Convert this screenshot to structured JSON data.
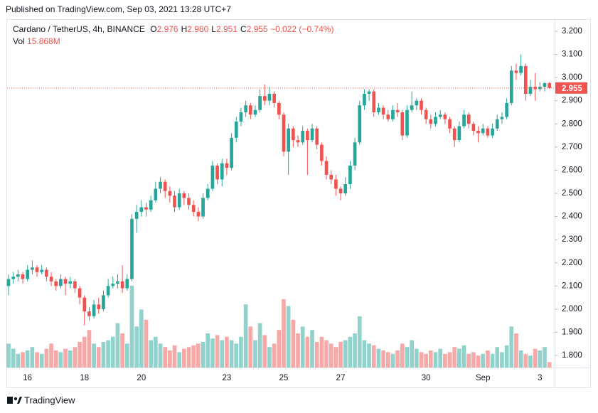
{
  "header": "Published on TradingView.com, Sep 03, 2021 13:28 UTC+7",
  "footer": "TradingView",
  "chart_data": {
    "type": "candlestick",
    "legend": {
      "symbol": "Cardano / TetherUS, 4h, BINANCE",
      "items": [
        {
          "key": "O",
          "value": "2.976"
        },
        {
          "key": "H",
          "value": "2.980"
        },
        {
          "key": "L",
          "value": "2.951"
        },
        {
          "key": "C",
          "value": "2.955"
        }
      ],
      "change": "−0.022 (−0.74%)",
      "vol_key": "Vol",
      "vol_value": "15.868M"
    },
    "up_color": "#26a69a",
    "down_color": "#ef5350",
    "xlim": [
      -0.3,
      115.1
    ],
    "xticks": [
      {
        "value": 4,
        "label": "16"
      },
      {
        "value": 16,
        "label": "18"
      },
      {
        "value": 28,
        "label": "20"
      },
      {
        "value": 46,
        "label": "23"
      },
      {
        "value": 58,
        "label": "25"
      },
      {
        "value": 70,
        "label": "27"
      },
      {
        "value": 88,
        "label": "30"
      },
      {
        "value": 100,
        "label": "Sep"
      },
      {
        "value": 112,
        "label": "3"
      }
    ],
    "ylim": [
      1.748,
      3.249
    ],
    "yticks": [
      {
        "value": 1.8,
        "label": "1.800"
      },
      {
        "value": 1.9,
        "label": "1.900"
      },
      {
        "value": 2.0,
        "label": "2.000"
      },
      {
        "value": 2.1,
        "label": "2.100"
      },
      {
        "value": 2.2,
        "label": "2.200"
      },
      {
        "value": 2.3,
        "label": "2.300"
      },
      {
        "value": 2.4,
        "label": "2.400"
      },
      {
        "value": 2.5,
        "label": "2.500"
      },
      {
        "value": 2.6,
        "label": "2.600"
      },
      {
        "value": 2.7,
        "label": "2.700"
      },
      {
        "value": 2.8,
        "label": "2.800"
      },
      {
        "value": 2.9,
        "label": "2.900"
      },
      {
        "value": 3.0,
        "label": "3.000"
      },
      {
        "value": 3.1,
        "label": "3.100"
      },
      {
        "value": 3.2,
        "label": "3.200"
      }
    ],
    "grid": true,
    "vol_lim": [
      0,
      250
    ],
    "candles": [
      [
        2.1,
        2.15,
        2.06,
        2.13
      ],
      [
        2.13,
        2.16,
        2.11,
        2.14
      ],
      [
        2.14,
        2.17,
        2.12,
        2.15
      ],
      [
        2.15,
        2.16,
        2.11,
        2.13
      ],
      [
        2.13,
        2.19,
        2.12,
        2.17
      ],
      [
        2.17,
        2.21,
        2.15,
        2.18
      ],
      [
        2.18,
        2.19,
        2.14,
        2.16
      ],
      [
        2.16,
        2.19,
        2.15,
        2.17
      ],
      [
        2.17,
        2.18,
        2.12,
        2.14
      ],
      [
        2.14,
        2.16,
        2.1,
        2.12
      ],
      [
        2.12,
        2.13,
        2.08,
        2.1
      ],
      [
        2.1,
        2.15,
        2.09,
        2.13
      ],
      [
        2.13,
        2.14,
        2.06,
        2.11
      ],
      [
        2.11,
        2.14,
        2.09,
        2.12
      ],
      [
        2.12,
        2.13,
        2.07,
        2.09
      ],
      [
        2.09,
        2.1,
        2.02,
        2.05
      ],
      [
        2.05,
        2.06,
        1.93,
        1.99
      ],
      [
        1.99,
        2.01,
        1.95,
        1.97
      ],
      [
        1.97,
        2.04,
        1.96,
        2.02
      ],
      [
        2.02,
        2.05,
        1.98,
        2.0
      ],
      [
        2.0,
        2.08,
        1.99,
        2.06
      ],
      [
        2.06,
        2.13,
        2.05,
        2.1
      ],
      [
        2.1,
        2.14,
        2.09,
        2.11
      ],
      [
        2.11,
        2.15,
        2.09,
        2.12
      ],
      [
        2.12,
        2.19,
        2.07,
        2.09
      ],
      [
        2.09,
        2.15,
        2.08,
        2.13
      ],
      [
        2.13,
        2.41,
        2.12,
        2.39
      ],
      [
        2.39,
        2.45,
        2.33,
        2.42
      ],
      [
        2.42,
        2.47,
        2.4,
        2.44
      ],
      [
        2.44,
        2.46,
        2.4,
        2.43
      ],
      [
        2.43,
        2.49,
        2.42,
        2.47
      ],
      [
        2.47,
        2.55,
        2.46,
        2.52
      ],
      [
        2.52,
        2.57,
        2.5,
        2.55
      ],
      [
        2.55,
        2.56,
        2.48,
        2.51
      ],
      [
        2.51,
        2.53,
        2.46,
        2.49
      ],
      [
        2.49,
        2.51,
        2.42,
        2.44
      ],
      [
        2.44,
        2.52,
        2.43,
        2.5
      ],
      [
        2.5,
        2.51,
        2.45,
        2.48
      ],
      [
        2.48,
        2.5,
        2.43,
        2.45
      ],
      [
        2.45,
        2.47,
        2.4,
        2.42
      ],
      [
        2.42,
        2.44,
        2.38,
        2.4
      ],
      [
        2.4,
        2.5,
        2.39,
        2.48
      ],
      [
        2.48,
        2.54,
        2.47,
        2.52
      ],
      [
        2.52,
        2.64,
        2.51,
        2.62
      ],
      [
        2.62,
        2.63,
        2.54,
        2.56
      ],
      [
        2.56,
        2.65,
        2.53,
        2.63
      ],
      [
        2.63,
        2.65,
        2.58,
        2.61
      ],
      [
        2.61,
        2.76,
        2.6,
        2.74
      ],
      [
        2.74,
        2.83,
        2.72,
        2.81
      ],
      [
        2.81,
        2.87,
        2.79,
        2.85
      ],
      [
        2.85,
        2.9,
        2.83,
        2.88
      ],
      [
        2.88,
        2.89,
        2.82,
        2.84
      ],
      [
        2.84,
        2.88,
        2.83,
        2.86
      ],
      [
        2.86,
        2.95,
        2.85,
        2.92
      ],
      [
        2.92,
        2.97,
        2.88,
        2.9
      ],
      [
        2.9,
        2.96,
        2.88,
        2.93
      ],
      [
        2.93,
        2.94,
        2.87,
        2.89
      ],
      [
        2.89,
        2.9,
        2.82,
        2.84
      ],
      [
        2.84,
        2.85,
        2.66,
        2.68
      ],
      [
        2.68,
        2.8,
        2.58,
        2.78
      ],
      [
        2.78,
        2.79,
        2.7,
        2.73
      ],
      [
        2.73,
        2.75,
        2.7,
        2.72
      ],
      [
        2.72,
        2.79,
        2.71,
        2.77
      ],
      [
        2.77,
        2.78,
        2.58,
        2.73
      ],
      [
        2.73,
        2.8,
        2.72,
        2.78
      ],
      [
        2.78,
        2.79,
        2.69,
        2.71
      ],
      [
        2.71,
        2.72,
        2.62,
        2.64
      ],
      [
        2.64,
        2.66,
        2.56,
        2.58
      ],
      [
        2.58,
        2.6,
        2.54,
        2.56
      ],
      [
        2.56,
        2.58,
        2.49,
        2.52
      ],
      [
        2.52,
        2.53,
        2.47,
        2.5
      ],
      [
        2.5,
        2.57,
        2.49,
        2.54
      ],
      [
        2.54,
        2.64,
        2.52,
        2.62
      ],
      [
        2.62,
        2.74,
        2.6,
        2.72
      ],
      [
        2.72,
        2.9,
        2.71,
        2.88
      ],
      [
        2.88,
        2.95,
        2.86,
        2.93
      ],
      [
        2.93,
        2.95,
        2.9,
        2.94
      ],
      [
        2.94,
        2.95,
        2.83,
        2.85
      ],
      [
        2.85,
        2.89,
        2.84,
        2.87
      ],
      [
        2.87,
        2.88,
        2.82,
        2.84
      ],
      [
        2.84,
        2.86,
        2.81,
        2.82
      ],
      [
        2.82,
        2.88,
        2.81,
        2.86
      ],
      [
        2.86,
        2.89,
        2.83,
        2.85
      ],
      [
        2.85,
        2.86,
        2.73,
        2.75
      ],
      [
        2.75,
        2.88,
        2.74,
        2.86
      ],
      [
        2.86,
        2.94,
        2.85,
        2.88
      ],
      [
        2.88,
        2.91,
        2.86,
        2.9
      ],
      [
        2.9,
        2.91,
        2.84,
        2.86
      ],
      [
        2.86,
        2.87,
        2.8,
        2.82
      ],
      [
        2.82,
        2.84,
        2.78,
        2.8
      ],
      [
        2.8,
        2.85,
        2.79,
        2.83
      ],
      [
        2.83,
        2.86,
        2.82,
        2.84
      ],
      [
        2.84,
        2.85,
        2.8,
        2.82
      ],
      [
        2.82,
        2.83,
        2.76,
        2.78
      ],
      [
        2.78,
        2.79,
        2.7,
        2.73
      ],
      [
        2.73,
        2.81,
        2.72,
        2.79
      ],
      [
        2.79,
        2.86,
        2.78,
        2.84
      ],
      [
        2.84,
        2.85,
        2.78,
        2.8
      ],
      [
        2.8,
        2.81,
        2.75,
        2.77
      ],
      [
        2.77,
        2.79,
        2.72,
        2.76
      ],
      [
        2.76,
        2.8,
        2.75,
        2.78
      ],
      [
        2.78,
        2.79,
        2.74,
        2.75
      ],
      [
        2.75,
        2.8,
        2.74,
        2.78
      ],
      [
        2.78,
        2.84,
        2.77,
        2.82
      ],
      [
        2.82,
        2.85,
        2.8,
        2.83
      ],
      [
        2.83,
        2.91,
        2.82,
        2.89
      ],
      [
        2.89,
        3.05,
        2.88,
        3.03
      ],
      [
        3.03,
        3.06,
        2.99,
        3.02
      ],
      [
        3.02,
        3.1,
        3.01,
        3.05
      ],
      [
        3.05,
        3.06,
        2.9,
        2.93
      ],
      [
        2.93,
        2.99,
        2.92,
        2.96
      ],
      [
        2.96,
        3.02,
        2.9,
        2.95
      ],
      [
        2.95,
        2.98,
        2.94,
        2.96
      ],
      [
        2.96,
        2.98,
        2.94,
        2.976
      ],
      [
        2.976,
        2.98,
        2.951,
        2.955
      ]
    ],
    "volume": [
      70,
      55,
      40,
      45,
      50,
      60,
      45,
      40,
      55,
      70,
      50,
      45,
      55,
      50,
      60,
      75,
      90,
      110,
      70,
      60,
      75,
      80,
      90,
      130,
      100,
      70,
      240,
      120,
      170,
      140,
      80,
      90,
      70,
      60,
      50,
      65,
      45,
      55,
      60,
      65,
      70,
      75,
      100,
      85,
      95,
      80,
      90,
      80,
      70,
      90,
      185,
      120,
      80,
      130,
      95,
      60,
      70,
      110,
      200,
      180,
      140,
      100,
      120,
      90,
      110,
      75,
      90,
      80,
      70,
      60,
      75,
      80,
      90,
      100,
      150,
      80,
      70,
      65,
      55,
      50,
      45,
      40,
      50,
      70,
      60,
      80,
      55,
      45,
      40,
      50,
      45,
      55,
      40,
      45,
      60,
      55,
      65,
      40,
      45,
      35,
      40,
      50,
      40,
      60,
      45,
      65,
      120,
      100,
      50,
      40,
      35,
      55,
      50,
      60,
      15.868
    ],
    "last_price": 2.955
  }
}
